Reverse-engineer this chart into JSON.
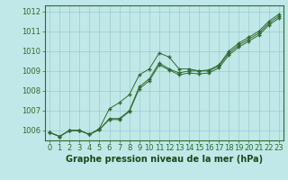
{
  "x": [
    0,
    1,
    2,
    3,
    4,
    5,
    6,
    7,
    8,
    9,
    10,
    11,
    12,
    13,
    14,
    15,
    16,
    17,
    18,
    19,
    20,
    21,
    22,
    23
  ],
  "line1": [
    1005.9,
    1005.7,
    1006.0,
    1006.0,
    1005.8,
    1006.1,
    1007.1,
    1007.4,
    1007.8,
    1008.8,
    1009.1,
    1009.9,
    1009.7,
    1009.1,
    1009.1,
    1009.0,
    1009.05,
    1009.3,
    1010.0,
    1010.4,
    1010.7,
    1011.0,
    1011.5,
    1011.85
  ],
  "line2": [
    1005.9,
    1005.7,
    1006.0,
    1006.0,
    1005.8,
    1006.05,
    1006.6,
    1006.6,
    1007.0,
    1008.2,
    1008.6,
    1009.4,
    1009.1,
    1008.9,
    1009.0,
    1009.0,
    1009.0,
    1009.25,
    1009.9,
    1010.3,
    1010.6,
    1010.9,
    1011.4,
    1011.75
  ],
  "line3": [
    1005.9,
    1005.7,
    1006.0,
    1006.0,
    1005.8,
    1006.05,
    1006.55,
    1006.55,
    1006.95,
    1008.1,
    1008.5,
    1009.3,
    1009.05,
    1008.8,
    1008.9,
    1008.85,
    1008.9,
    1009.15,
    1009.8,
    1010.2,
    1010.5,
    1010.8,
    1011.3,
    1011.65
  ],
  "line_color": "#2d6a2d",
  "bg_color": "#c0e8e8",
  "grid_color": "#98cccc",
  "xlabel": "Graphe pression niveau de la mer (hPa)",
  "ylim": [
    1005.5,
    1012.3
  ],
  "xlim": [
    -0.5,
    23.5
  ],
  "yticks": [
    1006,
    1007,
    1008,
    1009,
    1010,
    1011,
    1012
  ],
  "xticks": [
    0,
    1,
    2,
    3,
    4,
    5,
    6,
    7,
    8,
    9,
    10,
    11,
    12,
    13,
    14,
    15,
    16,
    17,
    18,
    19,
    20,
    21,
    22,
    23
  ],
  "xlabel_color": "#1a4a1a",
  "xlabel_fontsize": 7,
  "tick_fontsize": 6
}
